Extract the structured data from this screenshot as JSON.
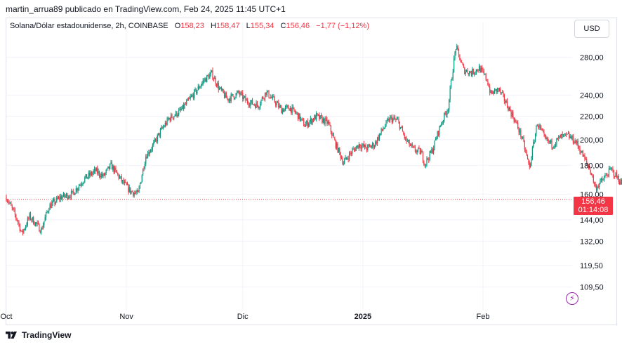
{
  "caption": "martin_arrua89 publicado en TradingView.com, Feb 24, 2025 11:45 UTC+1",
  "legend": {
    "symbol": "Solana/Dólar estadounidense, 2h, COINBASE",
    "open_label": "O",
    "open": "158,23",
    "high_label": "H",
    "high": "158,47",
    "low_label": "L",
    "low": "155,34",
    "close_label": "C",
    "close": "156,46",
    "change": "−1,77 (−1,12%)"
  },
  "currency_button": "USD",
  "current_price": "156,46",
  "countdown": "01:14:08",
  "footer_brand": "TradingView",
  "colors": {
    "up": "#089981",
    "down": "#f23645",
    "grid": "#f0f3fa",
    "price_line": "#f23645"
  },
  "icons": [
    "lightning-icon",
    "tradingview-logo-icon"
  ],
  "chart_data": {
    "type": "candlestick",
    "symbol": "Solana/Dólar estadounidense",
    "interval": "2h",
    "exchange": "COINBASE",
    "y_scale": "log",
    "y_ticks": [
      "280,00",
      "240,00",
      "220,00",
      "200,00",
      "180,00",
      "160,00",
      "144,00",
      "132,00",
      "119,50",
      "109,50"
    ],
    "y_tick_values": [
      280,
      240,
      220,
      200,
      180,
      160,
      144,
      132,
      119.5,
      109.5
    ],
    "ylim": [
      102,
      305
    ],
    "x_ticks": [
      "Oct",
      "Nov",
      "Dic",
      "2025",
      "Feb"
    ],
    "x_tick_index": [
      0,
      31,
      61,
      92,
      123
    ],
    "x_range_days": [
      0,
      146
    ],
    "last_price": 156.46,
    "price_path": [
      [
        0,
        158
      ],
      [
        3,
        143
      ],
      [
        4,
        136
      ],
      [
        6,
        146
      ],
      [
        9,
        138
      ],
      [
        11,
        152
      ],
      [
        14,
        158
      ],
      [
        17,
        160
      ],
      [
        20,
        170
      ],
      [
        23,
        176
      ],
      [
        25,
        172
      ],
      [
        27,
        180
      ],
      [
        30,
        168
      ],
      [
        32,
        162
      ],
      [
        34,
        160
      ],
      [
        36,
        187
      ],
      [
        38,
        196
      ],
      [
        40,
        208
      ],
      [
        42,
        218
      ],
      [
        45,
        225
      ],
      [
        49,
        244
      ],
      [
        51,
        255
      ],
      [
        53,
        262
      ],
      [
        55,
        246
      ],
      [
        57,
        236
      ],
      [
        60,
        242
      ],
      [
        62,
        234
      ],
      [
        65,
        230
      ],
      [
        67,
        243
      ],
      [
        69,
        235
      ],
      [
        71,
        226
      ],
      [
        73,
        228
      ],
      [
        75,
        222
      ],
      [
        77,
        212
      ],
      [
        80,
        220
      ],
      [
        83,
        214
      ],
      [
        85,
        196
      ],
      [
        87,
        182
      ],
      [
        89,
        190
      ],
      [
        91,
        196
      ],
      [
        93,
        193
      ],
      [
        95,
        196
      ],
      [
        97,
        208
      ],
      [
        99,
        218
      ],
      [
        101,
        216
      ],
      [
        103,
        200
      ],
      [
        105,
        192
      ],
      [
        107,
        190
      ],
      [
        108,
        181
      ],
      [
        110,
        192
      ],
      [
        112,
        212
      ],
      [
        114,
        228
      ],
      [
        116,
        292
      ],
      [
        118,
        266
      ],
      [
        120,
        263
      ],
      [
        122,
        268
      ],
      [
        124,
        256
      ],
      [
        125,
        241
      ],
      [
        127,
        246
      ],
      [
        129,
        232
      ],
      [
        131,
        218
      ],
      [
        133,
        202
      ],
      [
        135,
        178
      ],
      [
        137,
        214
      ],
      [
        139,
        200
      ],
      [
        141,
        196
      ],
      [
        143,
        202
      ],
      [
        145,
        203
      ],
      [
        147,
        198
      ],
      [
        149,
        186
      ],
      [
        151,
        174
      ],
      [
        152,
        164
      ],
      [
        154,
        170
      ],
      [
        156,
        177
      ],
      [
        158,
        170
      ],
      [
        160,
        162
      ],
      [
        161,
        156.46
      ]
    ]
  }
}
